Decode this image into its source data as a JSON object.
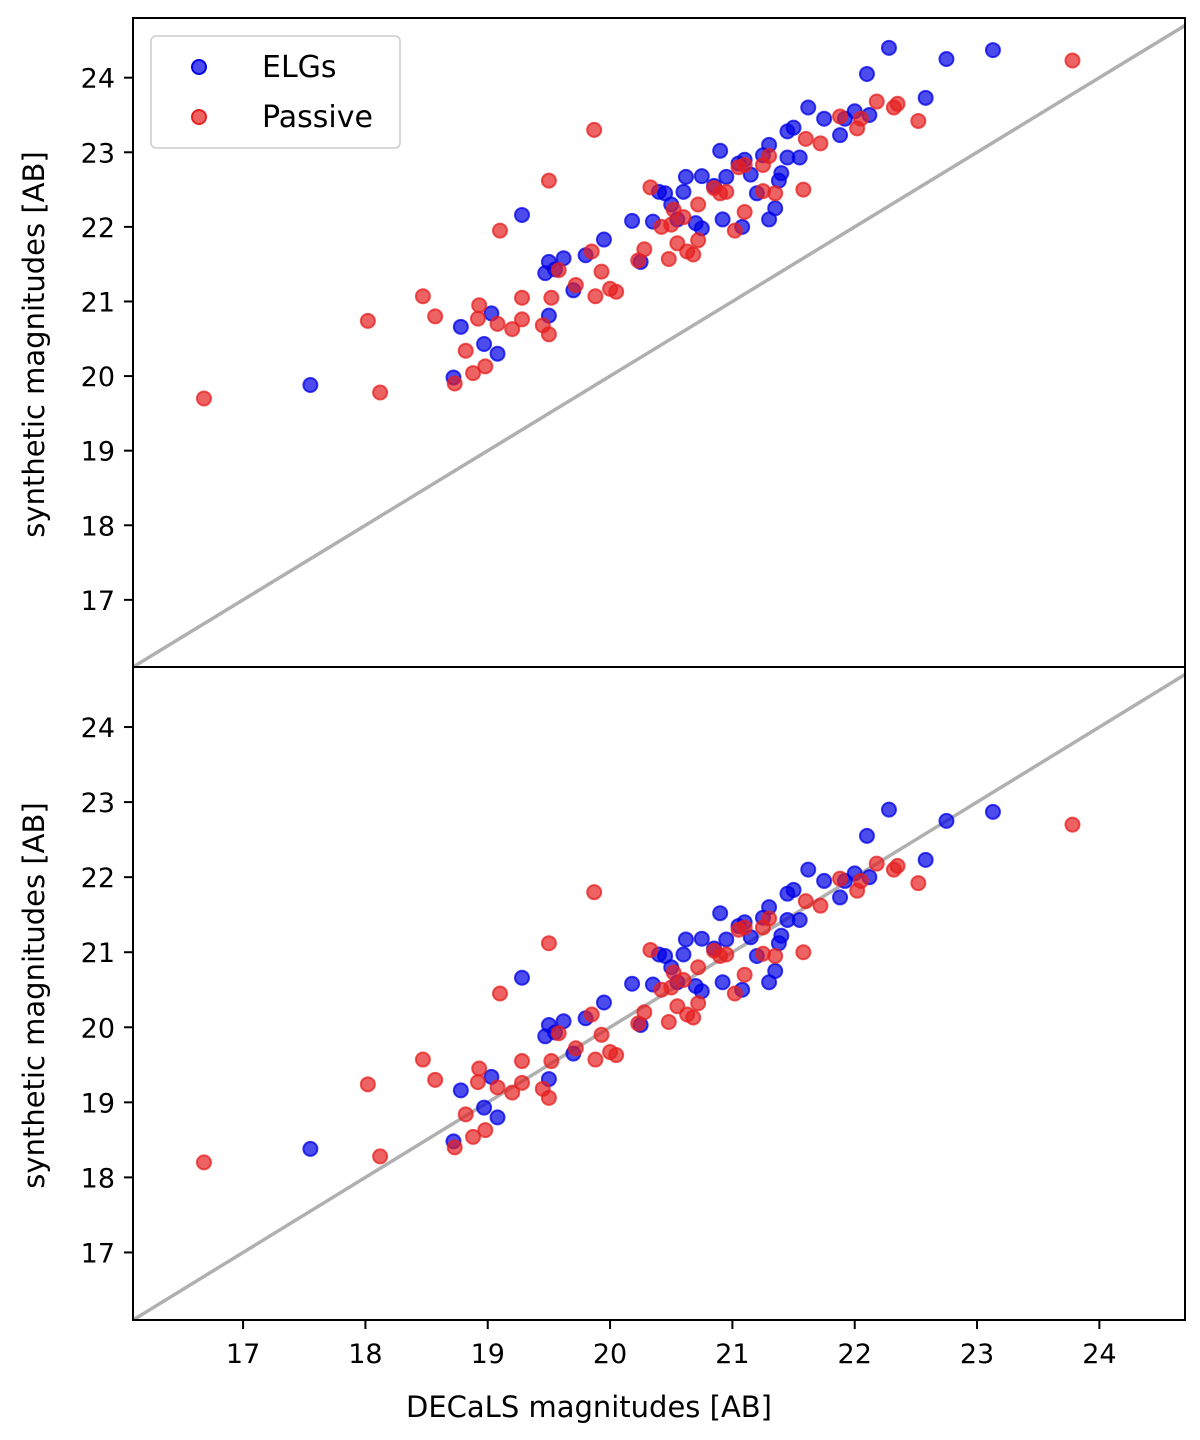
{
  "chart_data": [
    {
      "type": "scatter",
      "panel": "top",
      "ylabel": "synthetic magnitudes [AB]",
      "xlabel": "",
      "xlim": [
        16.1,
        24.7
      ],
      "ylim": [
        16.1,
        24.8
      ],
      "yticks": [
        "17",
        "18",
        "19",
        "20",
        "21",
        "22",
        "23",
        "24"
      ],
      "grid": false,
      "legend": {
        "placement": "top-left",
        "entries": [
          {
            "label": "ELGs",
            "color": "#0000e6"
          },
          {
            "label": "Passive",
            "color": "#e62020"
          }
        ]
      },
      "reference_line": {
        "x": [
          16.1,
          24.7
        ],
        "y": [
          16.1,
          24.7
        ],
        "color": "#b0b0b0"
      },
      "series": [
        {
          "name": "ELGs",
          "color": "#0000e6",
          "points": [
            [
              17.55,
              19.88
            ],
            [
              18.72,
              19.98
            ],
            [
              18.78,
              20.66
            ],
            [
              18.97,
              20.43
            ],
            [
              19.03,
              20.84
            ],
            [
              19.08,
              20.3
            ],
            [
              19.28,
              22.16
            ],
            [
              19.47,
              21.38
            ],
            [
              19.5,
              21.53
            ],
            [
              19.5,
              20.81
            ],
            [
              19.55,
              21.43
            ],
            [
              19.62,
              21.58
            ],
            [
              19.7,
              21.15
            ],
            [
              19.8,
              21.62
            ],
            [
              19.95,
              21.83
            ],
            [
              20.18,
              22.08
            ],
            [
              20.25,
              21.53
            ],
            [
              20.35,
              22.07
            ],
            [
              20.4,
              22.47
            ],
            [
              20.45,
              22.45
            ],
            [
              20.5,
              22.3
            ],
            [
              20.55,
              22.1
            ],
            [
              20.6,
              22.47
            ],
            [
              20.62,
              22.67
            ],
            [
              20.7,
              22.05
            ],
            [
              20.75,
              21.98
            ],
            [
              20.75,
              22.68
            ],
            [
              20.85,
              22.55
            ],
            [
              20.9,
              23.02
            ],
            [
              20.92,
              22.1
            ],
            [
              20.95,
              22.67
            ],
            [
              21.05,
              22.85
            ],
            [
              21.08,
              22.0
            ],
            [
              21.1,
              22.9
            ],
            [
              21.15,
              22.7
            ],
            [
              21.2,
              22.45
            ],
            [
              21.25,
              22.96
            ],
            [
              21.3,
              23.1
            ],
            [
              21.3,
              22.1
            ],
            [
              21.35,
              22.25
            ],
            [
              21.38,
              22.62
            ],
            [
              21.4,
              22.72
            ],
            [
              21.45,
              22.93
            ],
            [
              21.45,
              23.28
            ],
            [
              21.5,
              23.33
            ],
            [
              21.55,
              22.93
            ],
            [
              21.62,
              23.6
            ],
            [
              21.75,
              23.45
            ],
            [
              21.88,
              23.23
            ],
            [
              21.92,
              23.45
            ],
            [
              22.0,
              23.55
            ],
            [
              22.1,
              24.05
            ],
            [
              22.12,
              23.5
            ],
            [
              22.28,
              24.4
            ],
            [
              22.58,
              23.73
            ],
            [
              22.75,
              24.25
            ],
            [
              23.13,
              24.37
            ]
          ]
        },
        {
          "name": "Passive",
          "color": "#e62020",
          "points": [
            [
              16.68,
              19.7
            ],
            [
              18.02,
              20.74
            ],
            [
              18.12,
              19.78
            ],
            [
              18.47,
              21.07
            ],
            [
              18.57,
              20.8
            ],
            [
              18.73,
              19.9
            ],
            [
              18.82,
              20.34
            ],
            [
              18.88,
              20.04
            ],
            [
              18.92,
              20.77
            ],
            [
              18.93,
              20.95
            ],
            [
              18.98,
              20.13
            ],
            [
              19.1,
              21.95
            ],
            [
              19.08,
              20.7
            ],
            [
              19.2,
              20.63
            ],
            [
              19.28,
              20.76
            ],
            [
              19.28,
              21.05
            ],
            [
              19.45,
              20.68
            ],
            [
              19.5,
              20.56
            ],
            [
              19.5,
              22.62
            ],
            [
              19.52,
              21.05
            ],
            [
              19.58,
              21.42
            ],
            [
              19.72,
              21.22
            ],
            [
              19.85,
              21.67
            ],
            [
              19.87,
              23.3
            ],
            [
              19.88,
              21.07
            ],
            [
              19.93,
              21.4
            ],
            [
              20.0,
              21.17
            ],
            [
              20.05,
              21.13
            ],
            [
              20.23,
              21.55
            ],
            [
              20.28,
              21.7
            ],
            [
              20.33,
              22.53
            ],
            [
              20.42,
              22.0
            ],
            [
              20.48,
              21.57
            ],
            [
              20.5,
              22.03
            ],
            [
              20.52,
              22.23
            ],
            [
              20.55,
              21.78
            ],
            [
              20.6,
              22.13
            ],
            [
              20.63,
              21.67
            ],
            [
              20.68,
              21.63
            ],
            [
              20.72,
              22.3
            ],
            [
              20.72,
              21.82
            ],
            [
              20.85,
              22.52
            ],
            [
              20.9,
              22.45
            ],
            [
              20.95,
              22.47
            ],
            [
              21.02,
              21.95
            ],
            [
              21.05,
              22.8
            ],
            [
              21.1,
              22.83
            ],
            [
              21.1,
              22.2
            ],
            [
              21.25,
              22.83
            ],
            [
              21.25,
              22.48
            ],
            [
              21.3,
              22.95
            ],
            [
              21.35,
              22.45
            ],
            [
              21.58,
              22.5
            ],
            [
              21.6,
              23.18
            ],
            [
              21.72,
              23.12
            ],
            [
              21.88,
              23.48
            ],
            [
              22.02,
              23.32
            ],
            [
              22.05,
              23.45
            ],
            [
              22.18,
              23.68
            ],
            [
              22.32,
              23.6
            ],
            [
              22.35,
              23.65
            ],
            [
              22.52,
              23.42
            ],
            [
              23.78,
              24.23
            ]
          ]
        }
      ]
    },
    {
      "type": "scatter",
      "panel": "bottom",
      "ylabel": "synthetic magnitudes [AB]",
      "xlabel": "DECaLS magnitudes [AB]",
      "xlim": [
        16.1,
        24.7
      ],
      "ylim": [
        16.1,
        24.8
      ],
      "xticks": [
        "17",
        "18",
        "19",
        "20",
        "21",
        "22",
        "23",
        "24"
      ],
      "yticks": [
        "17",
        "18",
        "19",
        "20",
        "21",
        "22",
        "23",
        "24"
      ],
      "grid": false,
      "reference_line": {
        "x": [
          16.1,
          24.7
        ],
        "y": [
          16.1,
          24.7
        ],
        "color": "#b0b0b0"
      },
      "series": [
        {
          "name": "ELGs",
          "color": "#0000e6",
          "points": [
            [
              17.55,
              18.38
            ],
            [
              18.72,
              18.48
            ],
            [
              18.78,
              19.16
            ],
            [
              18.97,
              18.93
            ],
            [
              19.03,
              19.34
            ],
            [
              19.08,
              18.8
            ],
            [
              19.28,
              20.66
            ],
            [
              19.47,
              19.88
            ],
            [
              19.5,
              20.03
            ],
            [
              19.5,
              19.31
            ],
            [
              19.55,
              19.93
            ],
            [
              19.62,
              20.08
            ],
            [
              19.7,
              19.65
            ],
            [
              19.8,
              20.12
            ],
            [
              19.95,
              20.33
            ],
            [
              20.18,
              20.58
            ],
            [
              20.25,
              20.03
            ],
            [
              20.35,
              20.57
            ],
            [
              20.4,
              20.97
            ],
            [
              20.45,
              20.95
            ],
            [
              20.5,
              20.8
            ],
            [
              20.55,
              20.6
            ],
            [
              20.6,
              20.97
            ],
            [
              20.62,
              21.17
            ],
            [
              20.7,
              20.55
            ],
            [
              20.75,
              20.48
            ],
            [
              20.75,
              21.18
            ],
            [
              20.85,
              21.05
            ],
            [
              20.9,
              21.52
            ],
            [
              20.92,
              20.6
            ],
            [
              20.95,
              21.17
            ],
            [
              21.05,
              21.35
            ],
            [
              21.08,
              20.5
            ],
            [
              21.1,
              21.4
            ],
            [
              21.15,
              21.2
            ],
            [
              21.2,
              20.95
            ],
            [
              21.25,
              21.46
            ],
            [
              21.3,
              21.6
            ],
            [
              21.3,
              20.6
            ],
            [
              21.35,
              20.75
            ],
            [
              21.38,
              21.12
            ],
            [
              21.4,
              21.22
            ],
            [
              21.45,
              21.43
            ],
            [
              21.45,
              21.78
            ],
            [
              21.5,
              21.83
            ],
            [
              21.55,
              21.43
            ],
            [
              21.62,
              22.1
            ],
            [
              21.75,
              21.95
            ],
            [
              21.88,
              21.73
            ],
            [
              21.92,
              21.95
            ],
            [
              22.0,
              22.05
            ],
            [
              22.1,
              22.55
            ],
            [
              22.12,
              22.0
            ],
            [
              22.28,
              22.9
            ],
            [
              22.58,
              22.23
            ],
            [
              22.75,
              22.75
            ],
            [
              23.13,
              22.87
            ]
          ]
        },
        {
          "name": "Passive",
          "color": "#e62020",
          "points": [
            [
              16.68,
              18.2
            ],
            [
              18.02,
              19.24
            ],
            [
              18.12,
              18.28
            ],
            [
              18.47,
              19.57
            ],
            [
              18.57,
              19.3
            ],
            [
              18.73,
              18.4
            ],
            [
              18.82,
              18.84
            ],
            [
              18.88,
              18.54
            ],
            [
              18.92,
              19.27
            ],
            [
              18.93,
              19.45
            ],
            [
              18.98,
              18.63
            ],
            [
              19.1,
              20.45
            ],
            [
              19.08,
              19.2
            ],
            [
              19.2,
              19.13
            ],
            [
              19.28,
              19.26
            ],
            [
              19.28,
              19.55
            ],
            [
              19.45,
              19.18
            ],
            [
              19.5,
              19.06
            ],
            [
              19.5,
              21.12
            ],
            [
              19.52,
              19.55
            ],
            [
              19.58,
              19.92
            ],
            [
              19.72,
              19.72
            ],
            [
              19.85,
              20.17
            ],
            [
              19.87,
              21.8
            ],
            [
              19.88,
              19.57
            ],
            [
              19.93,
              19.9
            ],
            [
              20.0,
              19.67
            ],
            [
              20.05,
              19.63
            ],
            [
              20.23,
              20.05
            ],
            [
              20.28,
              20.2
            ],
            [
              20.33,
              21.03
            ],
            [
              20.42,
              20.5
            ],
            [
              20.48,
              20.07
            ],
            [
              20.5,
              20.53
            ],
            [
              20.52,
              20.73
            ],
            [
              20.55,
              20.28
            ],
            [
              20.6,
              20.63
            ],
            [
              20.63,
              20.17
            ],
            [
              20.68,
              20.13
            ],
            [
              20.72,
              20.8
            ],
            [
              20.72,
              20.32
            ],
            [
              20.85,
              21.02
            ],
            [
              20.9,
              20.95
            ],
            [
              20.95,
              20.97
            ],
            [
              21.02,
              20.45
            ],
            [
              21.05,
              21.3
            ],
            [
              21.1,
              21.33
            ],
            [
              21.1,
              20.7
            ],
            [
              21.25,
              21.33
            ],
            [
              21.25,
              20.98
            ],
            [
              21.3,
              21.45
            ],
            [
              21.35,
              20.95
            ],
            [
              21.58,
              21.0
            ],
            [
              21.6,
              21.68
            ],
            [
              21.72,
              21.62
            ],
            [
              21.88,
              21.98
            ],
            [
              22.02,
              21.82
            ],
            [
              22.05,
              21.95
            ],
            [
              22.18,
              22.18
            ],
            [
              22.32,
              22.1
            ],
            [
              22.35,
              22.15
            ],
            [
              22.52,
              21.92
            ],
            [
              23.78,
              22.7
            ]
          ]
        }
      ]
    }
  ]
}
